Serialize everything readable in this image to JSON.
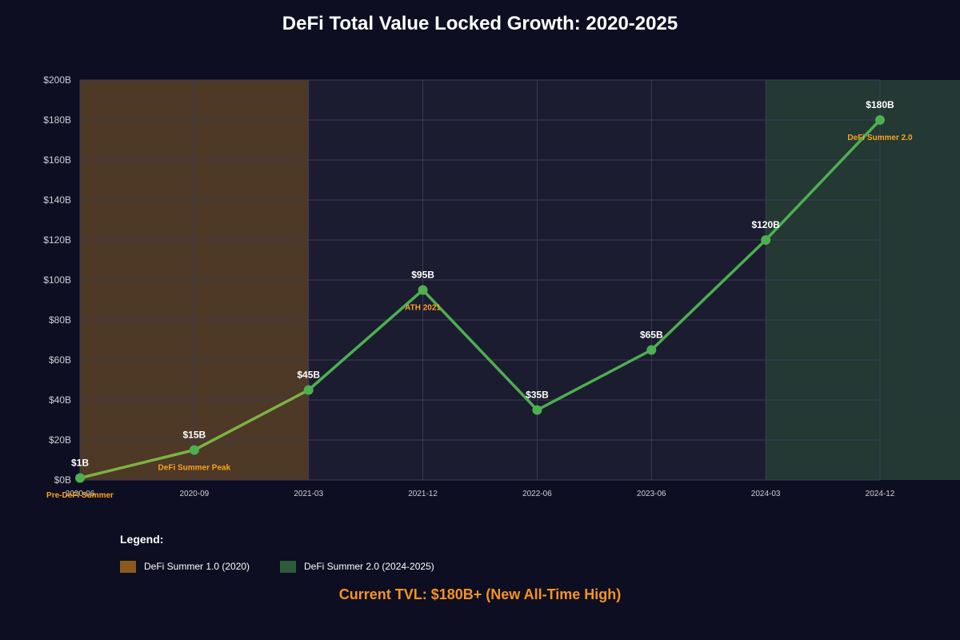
{
  "chart_data": {
    "type": "line",
    "title": "DeFi Total Value Locked Growth: 2020-2025",
    "categories": [
      "2020-06",
      "2020-09",
      "2021-03",
      "2021-12",
      "2022-06",
      "2023-06",
      "2024-03",
      "2024-12"
    ],
    "values": [
      1,
      15,
      45,
      95,
      35,
      65,
      120,
      180
    ],
    "value_labels": [
      "$1B",
      "$15B",
      "$45B",
      "$95B",
      "$35B",
      "$65B",
      "$120B",
      "$180B"
    ],
    "ylim": [
      0,
      200
    ],
    "y_ticks": [
      0,
      20,
      40,
      60,
      80,
      100,
      120,
      140,
      160,
      180,
      200
    ],
    "y_tick_labels": [
      "$0B",
      "$20B",
      "$40B",
      "$60B",
      "$80B",
      "$100B",
      "$120B",
      "$140B",
      "$160B",
      "$180B",
      "$200B"
    ],
    "grid": true,
    "annotations": [
      {
        "index": 0,
        "text": "Pre-DeFi Summer"
      },
      {
        "index": 1,
        "text": "DeFi Summer Peak"
      },
      {
        "index": 3,
        "text": "ATH 2021"
      },
      {
        "index": 7,
        "text": "DeFi Summer 2.0"
      }
    ],
    "shaded_regions": [
      {
        "name": "DeFi Summer 1.0 (2020)",
        "from": "2020-06",
        "to": "2021-03",
        "color": "#8b5a1b"
      },
      {
        "name": "DeFi Summer 2.0 (2024-2025)",
        "from": "2024-03",
        "to": "2024-12+",
        "color": "#2e5a3a"
      }
    ],
    "colors": {
      "line": "#4caf50",
      "line_early": "#7cb342",
      "annotation": "#f7a520",
      "tick_text": "#cfd0d8",
      "label_text": "#ffffff",
      "grid": "#3a3c55",
      "plot_bg": "#1c1c30"
    }
  },
  "legend": {
    "title": "Legend:",
    "items": [
      {
        "label": "DeFi Summer 1.0 (2020)",
        "color": "#8b5a1b"
      },
      {
        "label": "DeFi Summer 2.0 (2024-2025)",
        "color": "#2e5a3a"
      }
    ]
  },
  "footer": {
    "text": "Current TVL: $180B+ (New All-Time High)",
    "color": "#f7941d"
  }
}
